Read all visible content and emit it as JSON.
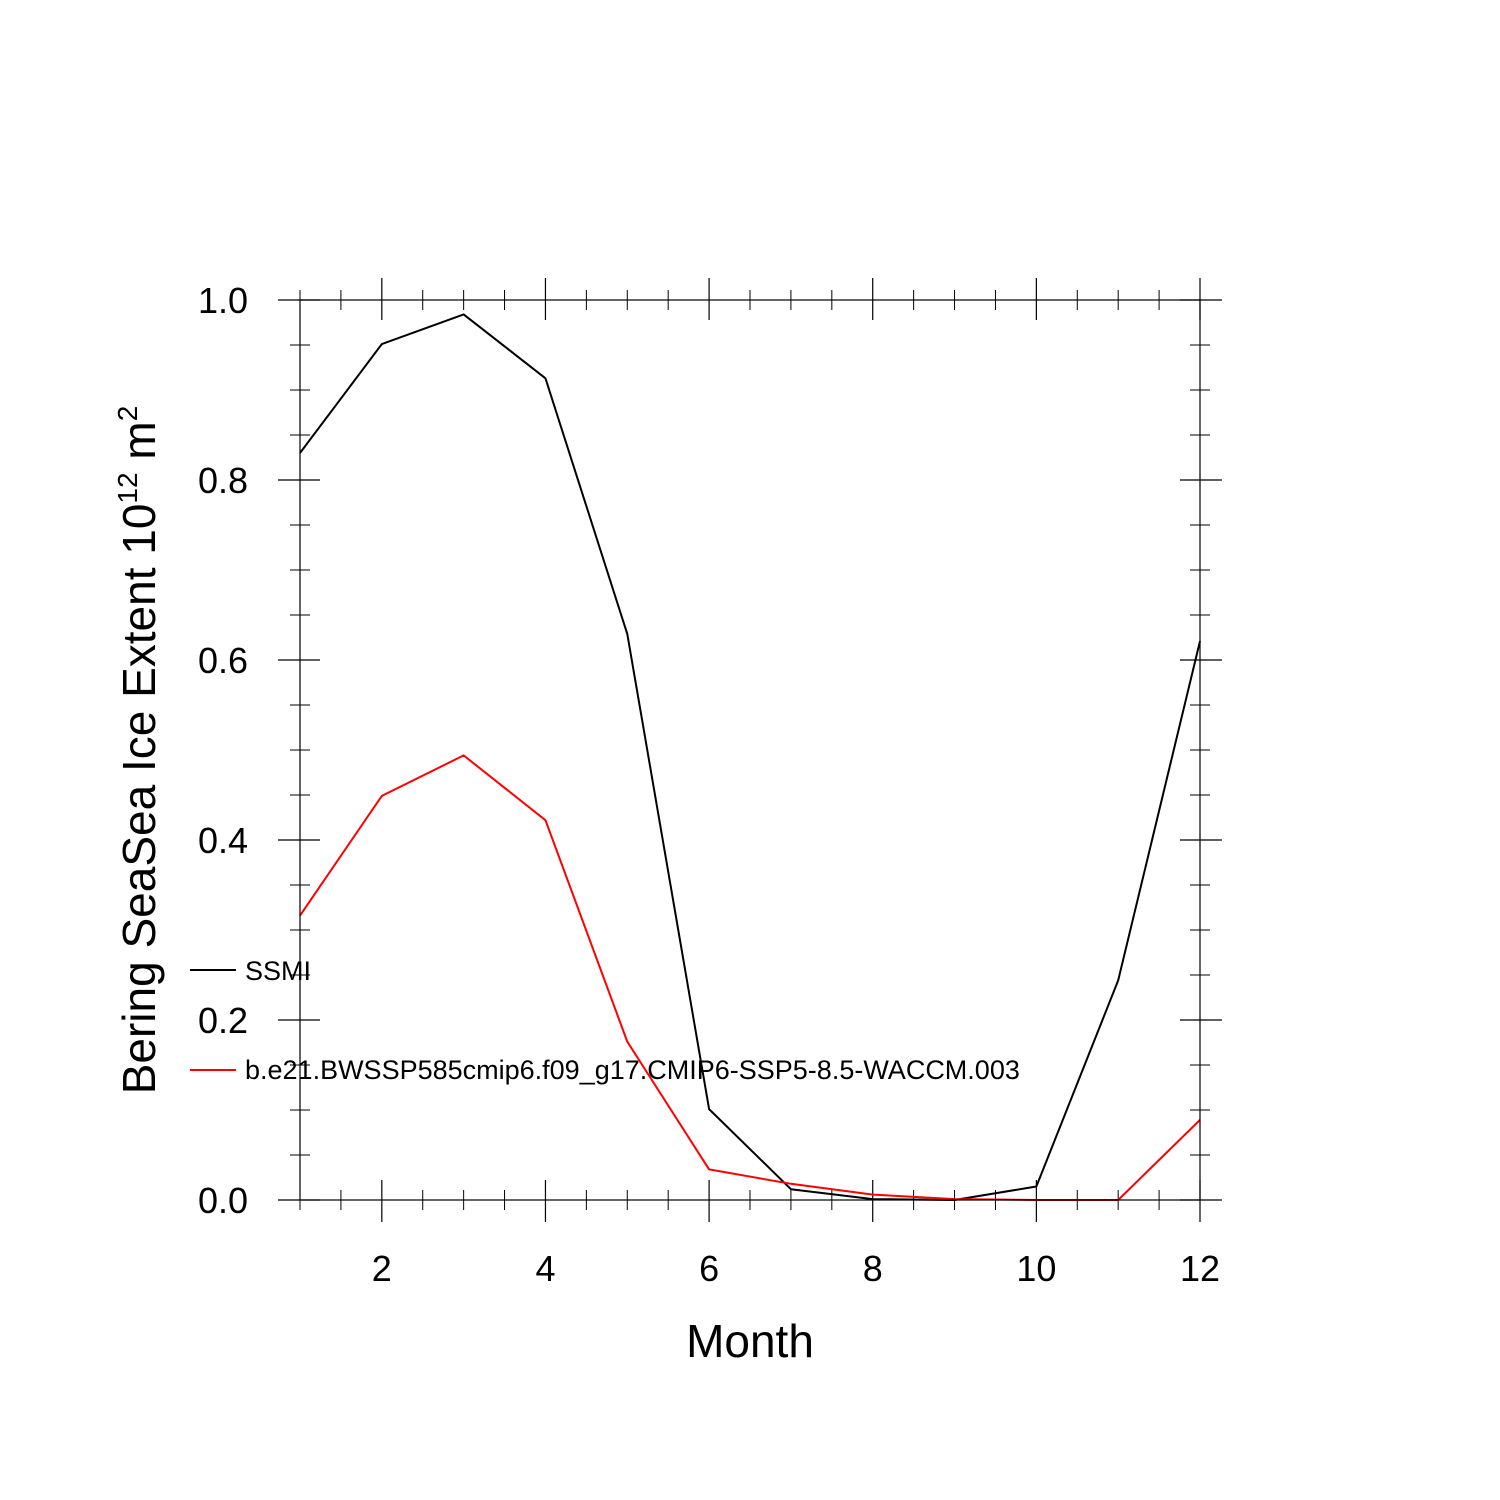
{
  "chart_data": {
    "type": "line",
    "xlabel": "Month",
    "ylabel": {
      "prefix": "Bering SeaSea Ice Extent 10",
      "exponent": "12",
      "suffix": " m",
      "suffix_exponent": "2"
    },
    "xlim": [
      1,
      12
    ],
    "ylim": [
      0,
      1
    ],
    "x_major_ticks": [
      2,
      4,
      6,
      8,
      10,
      12
    ],
    "x_tick_labels": [
      "2",
      "4",
      "6",
      "8",
      "10",
      "12"
    ],
    "x_minor_step": 0.5,
    "y_major_ticks": [
      0,
      0.2,
      0.4,
      0.6,
      0.8,
      1.0
    ],
    "y_tick_labels": [
      "0.0",
      "0.2",
      "0.4",
      "0.6",
      "0.8",
      "1.0"
    ],
    "y_minor_step": 0.05,
    "grid": false,
    "legend_position": "lower-left",
    "x": [
      1,
      2,
      3,
      4,
      5,
      6,
      7,
      8,
      9,
      10,
      11,
      12
    ],
    "series": [
      {
        "name": "SSMI",
        "color": "#000000",
        "values": [
          0.83,
          0.951,
          0.984,
          0.913,
          0.629,
          0.101,
          0.012,
          0.001,
          0.0,
          0.015,
          0.244,
          0.621
        ]
      },
      {
        "name": "b.e21.BWSSP585cmip6.f09_g17.CMIP6-SSP5-8.5-WACCM.003",
        "color": "#ff0000",
        "values": [
          0.316,
          0.449,
          0.494,
          0.422,
          0.176,
          0.034,
          0.018,
          0.006,
          0.001,
          0.0,
          0.0,
          0.089
        ]
      }
    ]
  }
}
